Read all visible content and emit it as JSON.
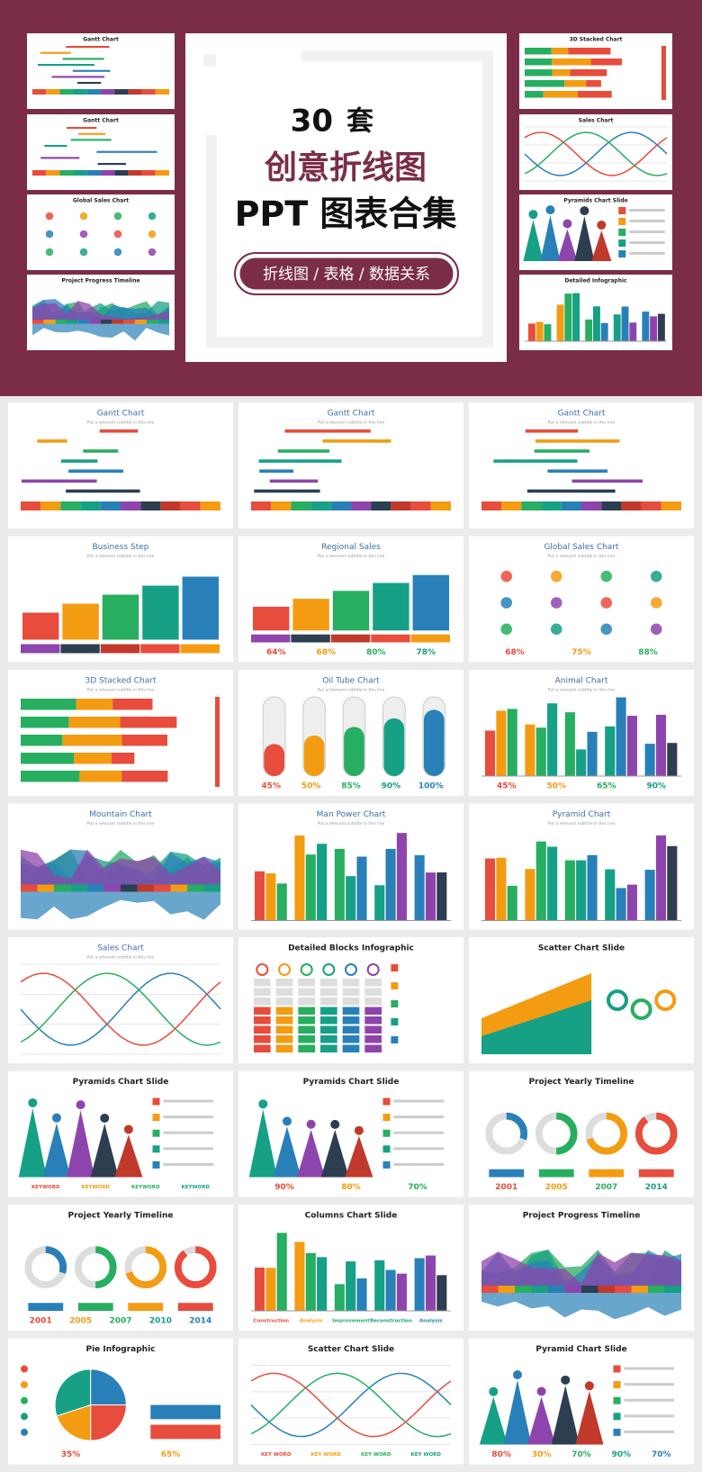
{
  "banner": {
    "count": "30",
    "unit": "套",
    "line1": "创意折线图",
    "line2": "PPT 图表合集",
    "tag": "折线图 / 表格 / 数据关系",
    "thumbs_left": [
      "Gantt Chart",
      "Gantt Chart",
      "Global Sales Chart",
      "Project Progress Timeline"
    ],
    "thumbs_right": [
      "3D Stacked Chart",
      "Sales Chart",
      "Pyramids Chart Slide",
      "Detailed Infographic"
    ]
  },
  "slides": [
    {
      "title": "Gantt Chart",
      "subtitle": "Put a relevant subtitle in this line"
    },
    {
      "title": "Gantt Chart",
      "subtitle": "Put a relevant subtitle in this line"
    },
    {
      "title": "Gantt Chart",
      "subtitle": "Put a relevant subtitle in this line"
    },
    {
      "title": "Business Step",
      "subtitle": "Put a relevant subtitle in this line"
    },
    {
      "title": "Regional Sales",
      "subtitle": "Put a relevant subtitle in this line",
      "labels": [
        "64%",
        "68%",
        "80%",
        "78%"
      ]
    },
    {
      "title": "Global Sales Chart",
      "subtitle": "Put a relevant subtitle in this line",
      "labels": [
        "68%",
        "75%",
        "88%"
      ]
    },
    {
      "title": "3D Stacked Chart",
      "subtitle": "Put a relevant subtitle in this line"
    },
    {
      "title": "Oil Tube Chart",
      "subtitle": "Put a relevant subtitle in this line",
      "labels": [
        "45%",
        "50%",
        "85%",
        "90%",
        "100%"
      ]
    },
    {
      "title": "Animal Chart",
      "subtitle": "Put a relevant subtitle in this line",
      "labels": [
        "45%",
        "50%",
        "65%",
        "90%"
      ]
    },
    {
      "title": "Mountain Chart",
      "subtitle": "Put a relevant subtitle in this line"
    },
    {
      "title": "Man Power Chart",
      "subtitle": "Put a relevant subtitle in this line"
    },
    {
      "title": "Pyramid Chart",
      "subtitle": "Put a relevant subtitle in this line"
    },
    {
      "title": "Sales Chart",
      "subtitle": "Put a relevant subtitle in this line"
    },
    {
      "title": "Detailed Blocks Infographic"
    },
    {
      "title": "Scatter Chart Slide"
    },
    {
      "title": "Pyramids Chart Slide",
      "labels": [
        "KEYWORD",
        "KEYWORD",
        "KEYWORD",
        "KEYWORD"
      ]
    },
    {
      "title": "Pyramids Chart Slide",
      "labels": [
        "90%",
        "80%",
        "70%"
      ]
    },
    {
      "title": "Project Yearly Timeline",
      "labels": [
        "2001",
        "2005",
        "2007",
        "2014"
      ]
    },
    {
      "title": "Project Yearly Timeline",
      "labels": [
        "2001",
        "2005",
        "2007",
        "2010",
        "2014"
      ]
    },
    {
      "title": "Columns Chart Slide",
      "labels": [
        "Construction",
        "Analysis",
        "Improvement",
        "Reconstruction",
        "Analysis"
      ]
    },
    {
      "title": "Project Progress Timeline"
    },
    {
      "title": "Pie Infographic",
      "labels": [
        "35%",
        "65%"
      ]
    },
    {
      "title": "Scatter Chart Slide",
      "labels": [
        "KEY WORD",
        "KEY WORD",
        "KEY WORD",
        "KEY WORD"
      ]
    },
    {
      "title": "Pyramid Chart Slide",
      "labels": [
        "80%",
        "30%",
        "70%",
        "90%",
        "70%"
      ]
    }
  ]
}
